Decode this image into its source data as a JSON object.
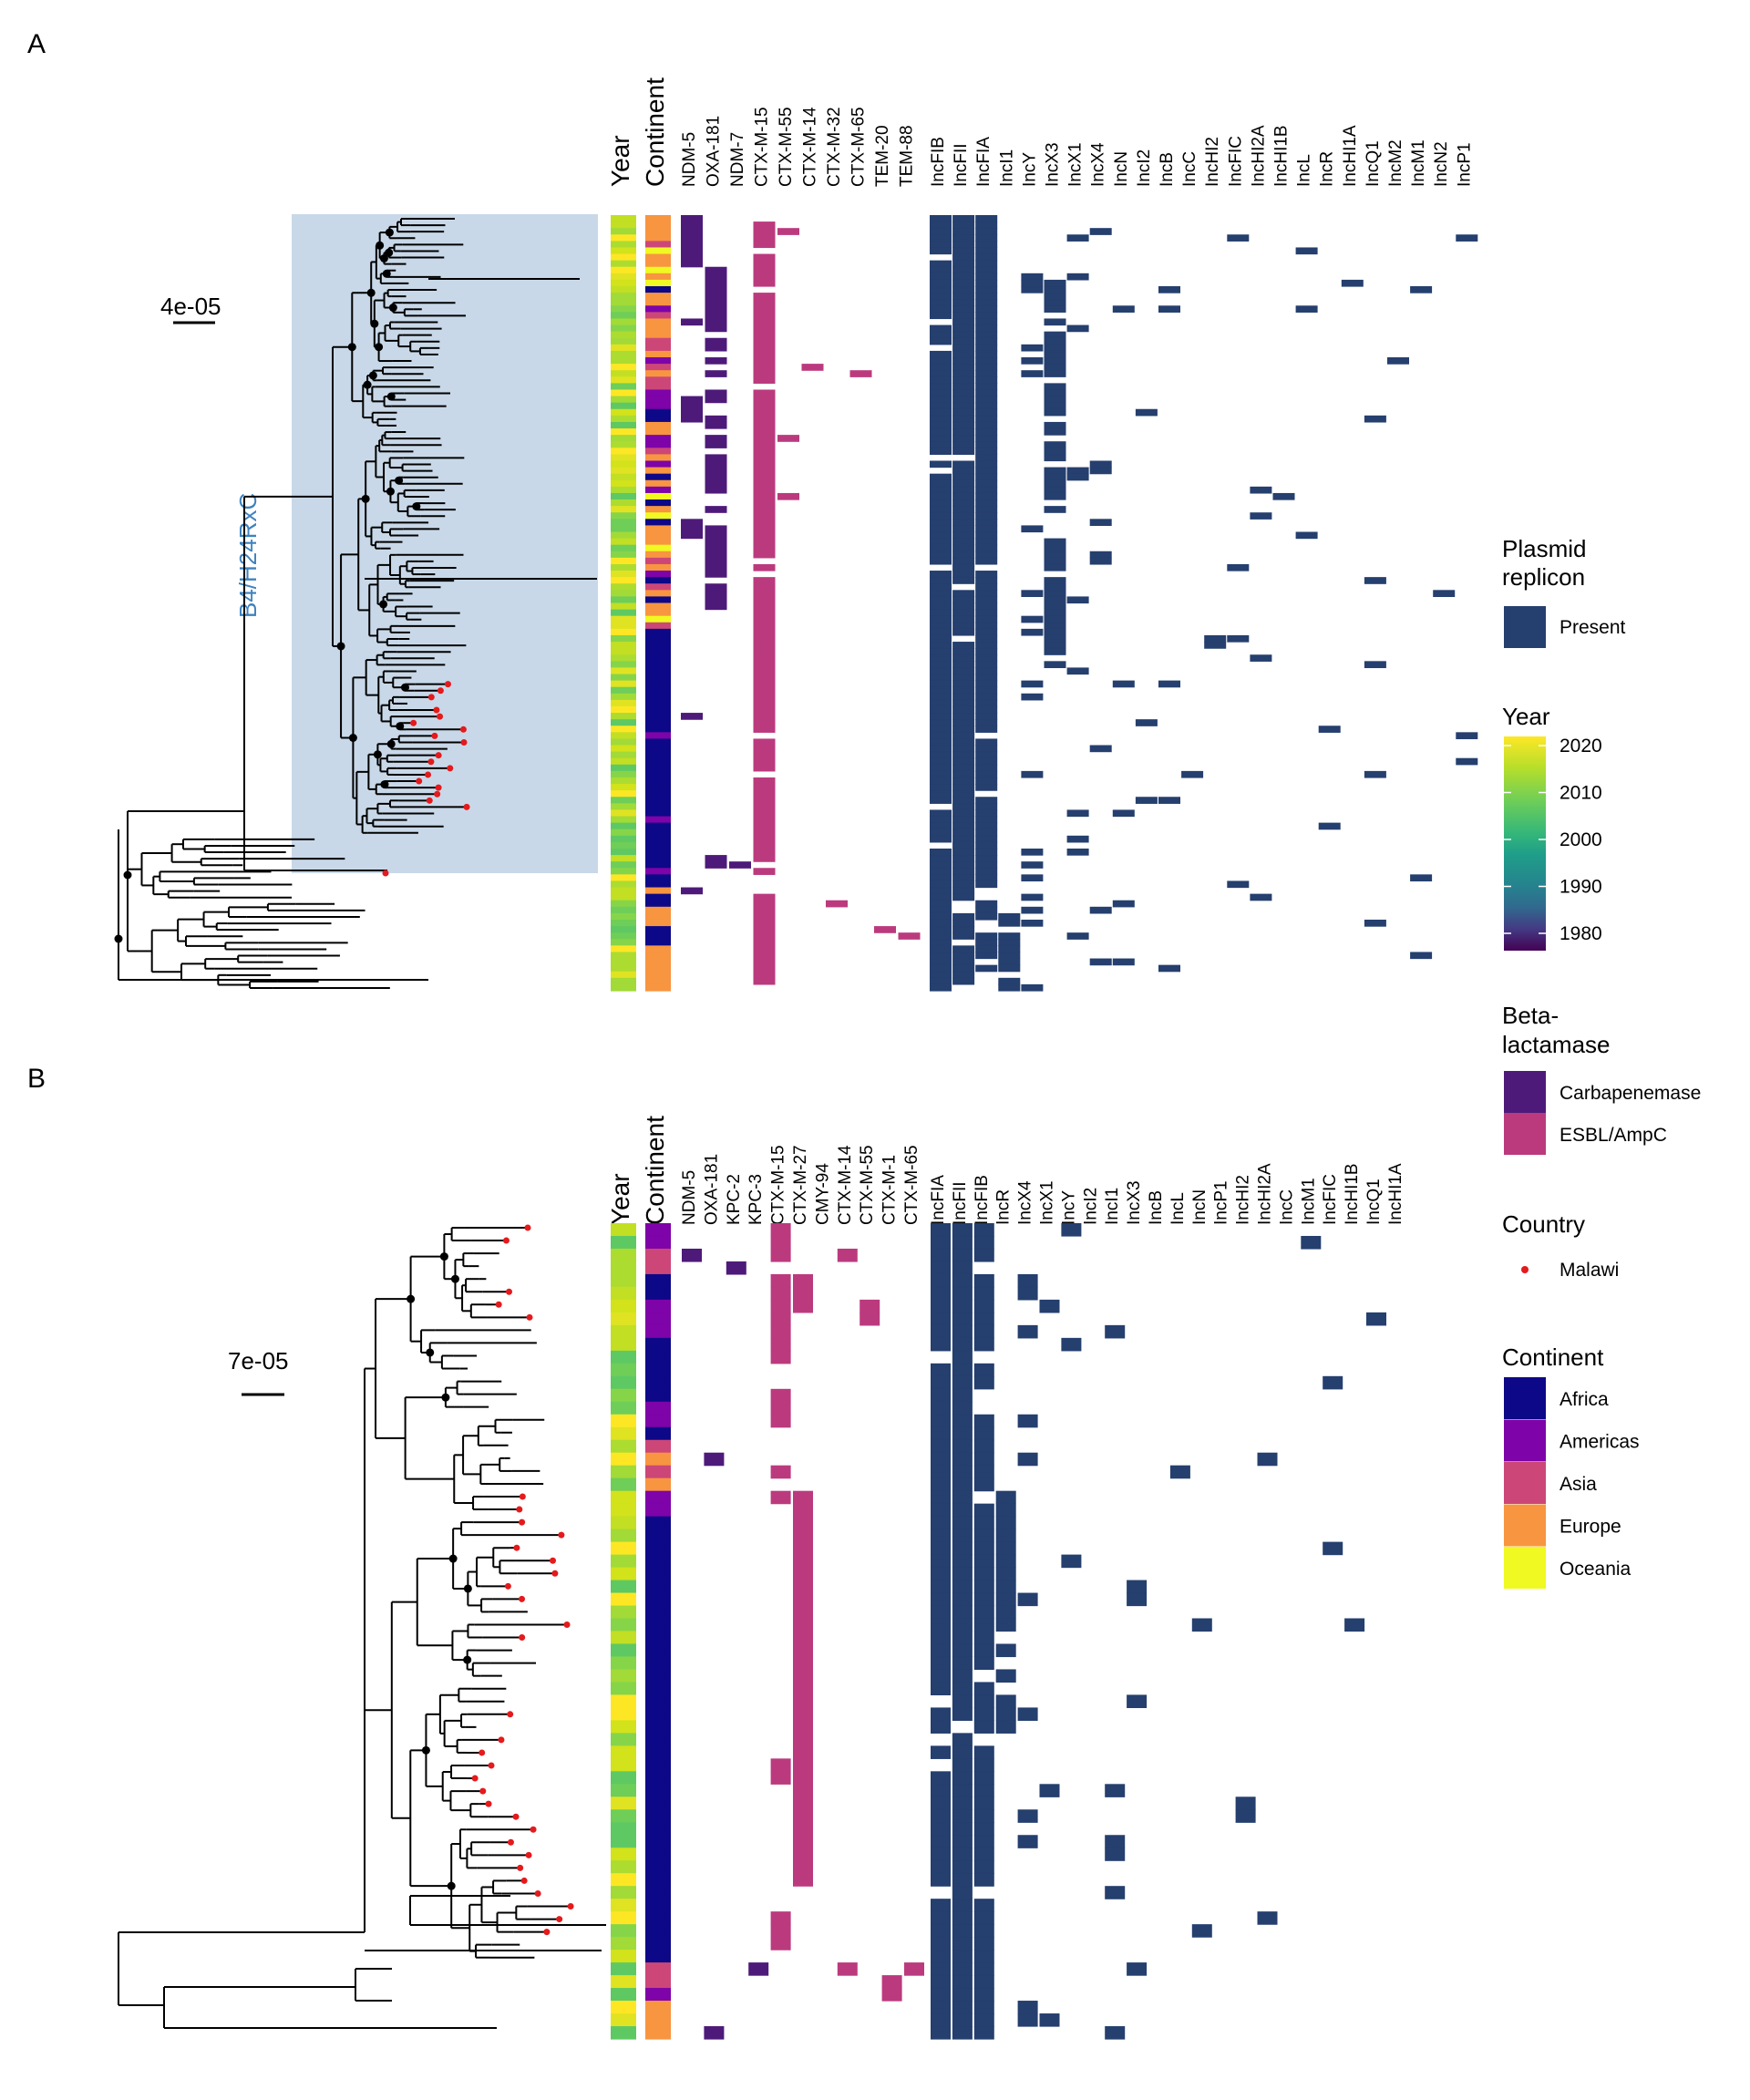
{
  "panels": {
    "A": {
      "letter": "A",
      "scale_label": "4e-05",
      "clade_label": "B4/H24RxC",
      "col_year": "Year",
      "col_continent": "Continent",
      "beta_lactamases": [
        "NDM-5",
        "OXA-181",
        "NDM-7",
        "CTX-M-15",
        "CTX-M-55",
        "CTX-M-14",
        "CTX-M-32",
        "CTX-M-65",
        "TEM-20",
        "TEM-88"
      ],
      "replicons": [
        "IncFIB",
        "IncFII",
        "IncFIA",
        "IncI1",
        "IncY",
        "IncX3",
        "IncX1",
        "IncX4",
        "IncN",
        "IncI2",
        "IncB",
        "IncC",
        "IncHI2",
        "IncFIC",
        "IncHI2A",
        "IncHI1B",
        "IncL",
        "IncR",
        "IncHI1A",
        "IncQ1",
        "IncM2",
        "IncM1",
        "IncN2",
        "IncP1"
      ]
    },
    "B": {
      "letter": "B",
      "scale_label": "7e-05",
      "col_year": "Year",
      "col_continent": "Continent",
      "beta_lactamases": [
        "NDM-5",
        "OXA-181",
        "KPC-2",
        "KPC-3",
        "CTX-M-15",
        "CTX-M-27",
        "CMY-94",
        "CTX-M-14",
        "CTX-M-55",
        "CTX-M-1",
        "CTX-M-65"
      ],
      "replicons": [
        "IncFIA",
        "IncFII",
        "IncFIB",
        "IncR",
        "IncX4",
        "IncX1",
        "IncY",
        "IncI2",
        "IncI1",
        "IncX3",
        "IncB",
        "IncL",
        "IncN",
        "IncP1",
        "IncHI2",
        "IncHI2A",
        "IncC",
        "IncM1",
        "IncFIC",
        "IncHI1B",
        "IncQ1",
        "IncHI1A"
      ]
    }
  },
  "legend": {
    "plasmid": {
      "title_line1": "Plasmid",
      "title_line2": "replicon",
      "present_label": "Present",
      "color": "#253f6e"
    },
    "year": {
      "title": "Year",
      "ticks": [
        "2020",
        "2010",
        "2000",
        "1990",
        "1980"
      ]
    },
    "beta": {
      "title_line1": "Beta-",
      "title_line2": "lactamase",
      "items": [
        {
          "label": "Carbapenemase",
          "color": "#4e1a7a"
        },
        {
          "label": "ESBL/AmpC",
          "color": "#bb3a7e"
        }
      ]
    },
    "country": {
      "title": "Country",
      "items": [
        {
          "label": "Malawi",
          "color": "#e41a1c"
        }
      ]
    },
    "continent": {
      "title": "Continent",
      "items": [
        {
          "label": "Africa",
          "color": "#0d0887"
        },
        {
          "label": "Americas",
          "color": "#7e03a8"
        },
        {
          "label": "Asia",
          "color": "#cc4778"
        },
        {
          "label": "Europe",
          "color": "#f89540"
        },
        {
          "label": "Oceania",
          "color": "#f0f921"
        }
      ]
    }
  }
}
